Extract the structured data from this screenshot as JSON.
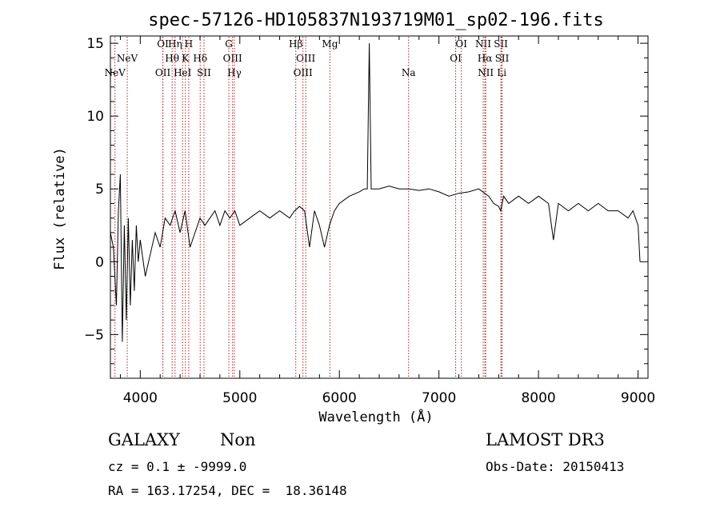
{
  "chart_data": {
    "type": "line",
    "title": "spec-57126-HD105837N193719M01_sp02-196.fits",
    "xlabel": "Wavelength (Å)",
    "ylabel": "Flux (relative)",
    "xlim": [
      3700,
      9100
    ],
    "ylim": [
      -8,
      15.5
    ],
    "xticks": [
      4000,
      5000,
      6000,
      7000,
      8000,
      9000
    ],
    "yticks": [
      -5,
      0,
      5,
      10,
      15
    ],
    "grid": false,
    "line_color": "#000000",
    "marker_color": "#b22222",
    "series": [
      {
        "name": "spectrum",
        "x": [
          3700,
          3730,
          3760,
          3780,
          3800,
          3820,
          3840,
          3860,
          3880,
          3900,
          3920,
          3940,
          3960,
          3980,
          4000,
          4050,
          4100,
          4150,
          4200,
          4250,
          4300,
          4350,
          4400,
          4450,
          4500,
          4550,
          4600,
          4650,
          4700,
          4750,
          4800,
          4850,
          4900,
          4950,
          5000,
          5100,
          5200,
          5300,
          5400,
          5500,
          5550,
          5600,
          5650,
          5700,
          5750,
          5800,
          5850,
          5900,
          5950,
          6000,
          6100,
          6200,
          6250,
          6280,
          6300,
          6320,
          6350,
          6400,
          6500,
          6600,
          6700,
          6800,
          6900,
          7000,
          7100,
          7200,
          7300,
          7400,
          7500,
          7550,
          7600,
          7620,
          7650,
          7700,
          7800,
          7900,
          8000,
          8100,
          8150,
          8200,
          8300,
          8400,
          8500,
          8600,
          8700,
          8800,
          8900,
          8950,
          9000,
          9020
        ],
        "y": [
          2.0,
          1.0,
          -3.0,
          3.5,
          6.0,
          -5.5,
          2.5,
          -4.0,
          3.0,
          -3.0,
          1.5,
          -2.0,
          2.5,
          0.0,
          1.5,
          -1.0,
          0.5,
          2.0,
          1.0,
          3.0,
          2.5,
          3.5,
          2.0,
          3.5,
          1.0,
          2.0,
          3.0,
          2.5,
          3.0,
          3.5,
          2.5,
          3.5,
          3.0,
          3.5,
          2.5,
          3.0,
          3.5,
          3.0,
          3.5,
          3.0,
          3.5,
          3.8,
          3.5,
          1.0,
          3.5,
          2.5,
          1.0,
          2.5,
          3.5,
          4.0,
          4.5,
          4.8,
          5.0,
          5.0,
          15.0,
          5.0,
          5.0,
          5.0,
          5.2,
          5.0,
          5.0,
          4.9,
          5.0,
          4.8,
          4.5,
          4.7,
          4.8,
          5.0,
          4.5,
          4.0,
          3.8,
          3.5,
          4.5,
          4.0,
          4.5,
          4.0,
          4.5,
          4.0,
          1.5,
          4.0,
          3.5,
          4.0,
          3.5,
          4.0,
          3.5,
          3.5,
          3.0,
          3.5,
          2.5,
          0.0
        ]
      }
    ],
    "lines": [
      {
        "label": "NeV",
        "wavelength": 3746,
        "row": 2
      },
      {
        "label": "NeV",
        "wavelength": 3869,
        "row": 1
      },
      {
        "label": "OII",
        "wavelength": 4227,
        "row": 2
      },
      {
        "label": "OI",
        "wavelength": 4227,
        "row": 0
      },
      {
        "label": "Hθ",
        "wavelength": 4320,
        "row": 1
      },
      {
        "label": "Hη",
        "wavelength": 4350,
        "row": 0
      },
      {
        "label": "HeI",
        "wavelength": 4425,
        "row": 2
      },
      {
        "label": "K",
        "wavelength": 4453,
        "row": 1
      },
      {
        "label": "H",
        "wavelength": 4487,
        "row": 0
      },
      {
        "label": "Hδ",
        "wavelength": 4602,
        "row": 1
      },
      {
        "label": "SII",
        "wavelength": 4640,
        "row": 2
      },
      {
        "label": "G",
        "wavelength": 4890,
        "row": 0
      },
      {
        "label": "OIII",
        "wavelength": 4927,
        "row": 1
      },
      {
        "label": "Hγ",
        "wavelength": 4945,
        "row": 2
      },
      {
        "label": "Hβ",
        "wavelength": 5562,
        "row": 0
      },
      {
        "label": "OIII",
        "wavelength": 5662,
        "row": 1
      },
      {
        "label": "OIII",
        "wavelength": 5634,
        "row": 2
      },
      {
        "label": "Mg",
        "wavelength": 5905,
        "row": 0
      },
      {
        "label": "Na",
        "wavelength": 6695,
        "row": 2
      },
      {
        "label": "OI",
        "wavelength": 7225,
        "row": 0
      },
      {
        "label": "OI",
        "wavelength": 7168,
        "row": 1
      },
      {
        "label": "NII",
        "wavelength": 7445,
        "row": 0
      },
      {
        "label": "Hα",
        "wavelength": 7462,
        "row": 1
      },
      {
        "label": "NII",
        "wavelength": 7470,
        "row": 2
      },
      {
        "label": "SII",
        "wavelength": 7622,
        "row": 0
      },
      {
        "label": "SII",
        "wavelength": 7634,
        "row": 1
      },
      {
        "label": "Li",
        "wavelength": 7631,
        "row": 2
      }
    ]
  },
  "footer": {
    "class_text": "GALAXY",
    "subclass_text": "Non",
    "survey_text": "LAMOST DR3",
    "cz_text": "cz = 0.1 ± -9999.0",
    "obs_date_text": "Obs-Date: 20150413",
    "radec_text": "RA = 163.17254, DEC =  18.36148"
  }
}
